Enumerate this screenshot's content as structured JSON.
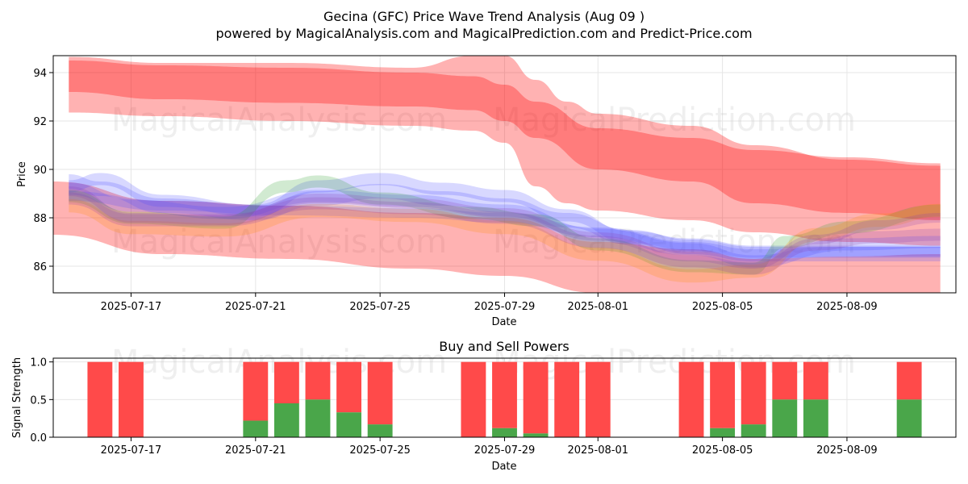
{
  "title": "Gecina (GFC) Price Wave Trend Analysis (Aug 09 )",
  "subtitle": "powered by MagicalAnalysis.com and MagicalPrediction.com and Predict-Price.com",
  "watermarks": [
    "MagicalAnalysis.com",
    "MagicalPrediction.com"
  ],
  "colors": {
    "red_band": "#ff0000",
    "blue_band": "#4d4dff",
    "green_band": "#2ca02c",
    "orange_band": "#ff8c00",
    "purple_band": "#8b3fb0",
    "buy": "#4aa64a",
    "sell": "#ff4a4a",
    "grid": "#e6e6e6"
  },
  "chart_data": [
    {
      "type": "area",
      "xlabel": "Date",
      "ylabel": "Price",
      "xlim": [
        "2025-07-14T12:00",
        "2025-08-12T12:00"
      ],
      "ylim": [
        84.9,
        94.7
      ],
      "xticks": [
        "2025-07-17",
        "2025-07-21",
        "2025-07-25",
        "2025-07-29",
        "2025-08-01",
        "2025-08-05",
        "2025-08-09"
      ],
      "yticks": [
        86,
        88,
        90,
        92,
        94
      ],
      "grid": true,
      "red_bands": [
        {
          "x": [
            "2025-07-15",
            "2025-07-18",
            "2025-07-22",
            "2025-07-26",
            "2025-07-28",
            "2025-07-29",
            "2025-07-30",
            "2025-07-31",
            "2025-08-01",
            "2025-08-04",
            "2025-08-06",
            "2025-08-09",
            "2025-08-12"
          ],
          "upper": [
            94.65,
            94.4,
            94.4,
            94.2,
            94.7,
            94.7,
            93.7,
            92.8,
            92.3,
            91.8,
            91.0,
            90.4,
            90.15
          ],
          "lower": [
            92.35,
            92.2,
            92.0,
            91.8,
            91.6,
            91.1,
            89.3,
            88.6,
            88.3,
            87.9,
            87.4,
            87.0,
            86.85
          ]
        },
        {
          "x": [
            "2025-07-15",
            "2025-07-18",
            "2025-07-22",
            "2025-07-26",
            "2025-07-28",
            "2025-07-29",
            "2025-07-30",
            "2025-08-01",
            "2025-08-04",
            "2025-08-06",
            "2025-08-09",
            "2025-08-12"
          ],
          "upper": [
            94.5,
            94.3,
            94.2,
            94.0,
            93.85,
            93.5,
            92.8,
            91.7,
            91.3,
            90.8,
            90.5,
            90.25
          ],
          "lower": [
            93.2,
            92.9,
            92.75,
            92.6,
            92.45,
            92.0,
            91.3,
            90.0,
            89.5,
            88.6,
            88.2,
            87.9
          ]
        },
        {
          "x": [
            "2025-07-14T12:00",
            "2025-07-18",
            "2025-07-22",
            "2025-07-26",
            "2025-07-29",
            "2025-08-01",
            "2025-08-04",
            "2025-08-06",
            "2025-08-09",
            "2025-08-12"
          ],
          "upper": [
            89.5,
            88.7,
            88.5,
            88.2,
            88.0,
            87.0,
            86.7,
            86.3,
            86.4,
            86.5
          ],
          "lower": [
            87.3,
            86.5,
            86.3,
            85.9,
            85.6,
            84.9,
            84.9,
            84.8,
            84.9,
            84.9
          ]
        }
      ],
      "wave_bands": [
        {
          "color": "blue",
          "x": [
            "2025-07-15",
            "2025-07-16",
            "2025-07-18",
            "2025-07-21",
            "2025-07-23",
            "2025-07-25",
            "2025-07-27",
            "2025-07-29",
            "2025-07-31",
            "2025-08-02",
            "2025-08-04",
            "2025-08-06",
            "2025-08-08",
            "2025-08-12"
          ],
          "center": [
            89.3,
            89.6,
            88.7,
            88.3,
            89.3,
            89.6,
            89.2,
            88.9,
            88.1,
            87.2,
            86.9,
            86.6,
            86.6,
            86.6
          ],
          "width": 0.5
        },
        {
          "color": "blue",
          "x": [
            "2025-07-15",
            "2025-07-16",
            "2025-07-18",
            "2025-07-21",
            "2025-07-23",
            "2025-07-25",
            "2025-07-27",
            "2025-07-29",
            "2025-07-31",
            "2025-08-02",
            "2025-08-04",
            "2025-08-06",
            "2025-08-08",
            "2025-08-12"
          ],
          "center": [
            89.5,
            89.2,
            88.5,
            88.2,
            88.8,
            89.1,
            88.8,
            88.5,
            87.9,
            87.2,
            86.8,
            86.5,
            86.5,
            86.5
          ],
          "width": 0.6
        },
        {
          "color": "blue",
          "x": [
            "2025-07-15",
            "2025-07-18",
            "2025-07-22",
            "2025-07-26",
            "2025-07-29",
            "2025-08-01",
            "2025-08-04",
            "2025-08-06",
            "2025-08-09",
            "2025-08-12"
          ],
          "center": [
            88.9,
            88.5,
            88.3,
            88.2,
            88.0,
            87.4,
            86.8,
            86.5,
            86.6,
            86.6
          ],
          "width": 0.4
        },
        {
          "color": "blue",
          "x": [
            "2025-07-15",
            "2025-07-17",
            "2025-07-20",
            "2025-07-23",
            "2025-07-26",
            "2025-07-29",
            "2025-08-01",
            "2025-08-04",
            "2025-08-06",
            "2025-08-09",
            "2025-08-12"
          ],
          "center": [
            89.2,
            88.5,
            88.2,
            88.9,
            88.7,
            88.3,
            87.3,
            86.7,
            86.2,
            86.9,
            87.0
          ],
          "width": 0.5
        },
        {
          "color": "green",
          "x": [
            "2025-07-15",
            "2025-07-17",
            "2025-07-20",
            "2025-07-22",
            "2025-07-23",
            "2025-07-25",
            "2025-07-28",
            "2025-07-30",
            "2025-08-01",
            "2025-08-04",
            "2025-08-06",
            "2025-08-07",
            "2025-08-09",
            "2025-08-12"
          ],
          "center": [
            88.9,
            88.0,
            87.8,
            89.3,
            89.5,
            88.8,
            88.2,
            87.9,
            86.9,
            86.0,
            85.9,
            87.0,
            87.6,
            88.3
          ],
          "width": 0.5
        },
        {
          "color": "orange",
          "x": [
            "2025-07-15",
            "2025-07-17",
            "2025-07-20",
            "2025-07-23",
            "2025-07-26",
            "2025-07-29",
            "2025-08-01",
            "2025-08-04",
            "2025-08-06",
            "2025-08-08",
            "2025-08-10",
            "2025-08-12"
          ],
          "center": [
            88.5,
            87.6,
            87.5,
            88.3,
            88.1,
            87.6,
            86.5,
            85.6,
            85.8,
            87.3,
            87.9,
            88.3
          ],
          "width": 0.55
        },
        {
          "color": "purple",
          "x": [
            "2025-07-15",
            "2025-07-17",
            "2025-07-20",
            "2025-07-23",
            "2025-07-26",
            "2025-07-29",
            "2025-08-01",
            "2025-08-04",
            "2025-08-06",
            "2025-08-08",
            "2025-08-10",
            "2025-08-12"
          ],
          "center": [
            88.8,
            87.9,
            87.9,
            88.6,
            88.4,
            88.0,
            87.0,
            86.2,
            85.9,
            86.9,
            87.2,
            87.3
          ],
          "width": 0.5
        },
        {
          "color": "purple",
          "x": [
            "2025-07-15",
            "2025-07-17",
            "2025-07-20",
            "2025-07-23",
            "2025-07-26",
            "2025-07-29",
            "2025-08-01",
            "2025-08-04",
            "2025-08-06",
            "2025-08-08",
            "2025-08-10",
            "2025-08-12"
          ],
          "center": [
            89.1,
            88.0,
            87.9,
            88.8,
            88.6,
            88.2,
            87.2,
            86.4,
            86.1,
            87.1,
            87.7,
            88.0
          ],
          "width": 0.4
        }
      ]
    },
    {
      "type": "bar",
      "title": "Buy and Sell Powers",
      "xlabel": "Date",
      "ylabel": "Signal Strength",
      "xlim": [
        "2025-07-14T12:00",
        "2025-08-12T12:00"
      ],
      "ylim": [
        0,
        1.05
      ],
      "xticks": [
        "2025-07-17",
        "2025-07-21",
        "2025-07-25",
        "2025-07-29",
        "2025-08-01",
        "2025-08-05",
        "2025-08-09"
      ],
      "yticks": [
        0.0,
        0.5,
        1.0
      ],
      "grid": true,
      "dates": [
        "2025-07-16",
        "2025-07-17",
        "2025-07-21",
        "2025-07-22",
        "2025-07-23",
        "2025-07-24",
        "2025-07-25",
        "2025-07-28",
        "2025-07-29",
        "2025-07-30",
        "2025-07-31",
        "2025-08-01",
        "2025-08-04",
        "2025-08-05",
        "2025-08-06",
        "2025-08-07",
        "2025-08-08",
        "2025-08-11"
      ],
      "series": [
        {
          "name": "Buy",
          "values": [
            0,
            0,
            0.22,
            0.45,
            0.5,
            0.33,
            0.17,
            0,
            0.12,
            0.05,
            0,
            0,
            0,
            0.12,
            0.17,
            0.5,
            0.5,
            0.5
          ]
        },
        {
          "name": "Sell",
          "values": [
            1,
            1,
            0.78,
            0.55,
            0.5,
            0.67,
            0.83,
            1,
            0.88,
            0.95,
            1,
            1,
            1,
            0.88,
            0.83,
            0.5,
            0.5,
            0.5
          ]
        }
      ]
    }
  ]
}
